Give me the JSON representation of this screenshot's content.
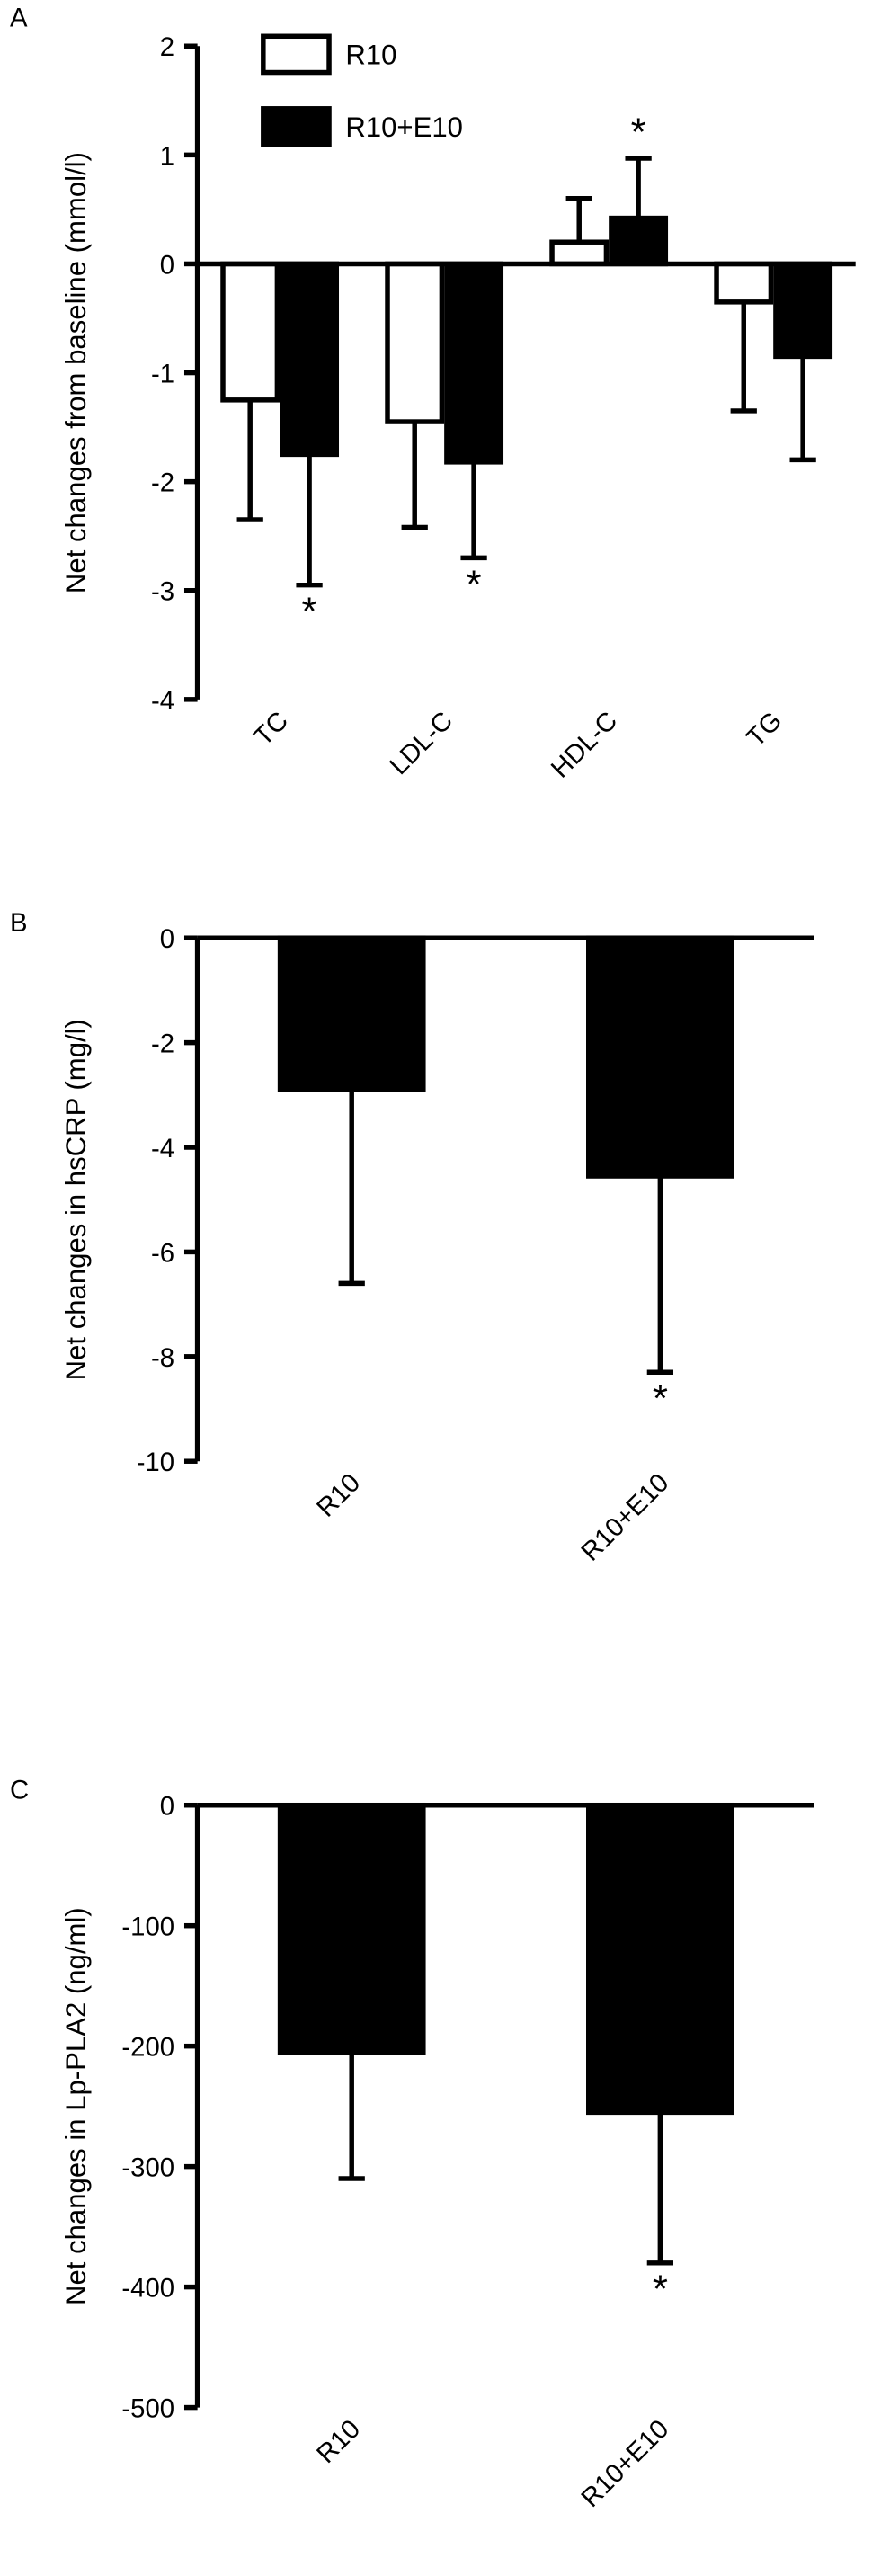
{
  "chart_data": [
    {
      "type": "bar",
      "panel_label": "A",
      "y_label": "Net changes from baseline (mmol/l)",
      "categories": [
        "TC",
        "LDL-C",
        "HDL-C",
        "TG"
      ],
      "series": [
        {
          "name": "R10",
          "color": "#ffffff",
          "values": [
            -1.25,
            -1.45,
            0.2,
            -0.35
          ],
          "errors": [
            1.1,
            0.97,
            0.4,
            1.0
          ],
          "annotations": [
            null,
            null,
            null,
            null
          ]
        },
        {
          "name": "R10+E10",
          "color": "#000000",
          "values": [
            -1.75,
            -1.82,
            0.42,
            -0.85
          ],
          "errors": [
            1.2,
            0.88,
            0.55,
            0.95
          ],
          "annotations": [
            "*",
            "*",
            "*",
            null
          ]
        }
      ],
      "ylim": [
        -4,
        2
      ],
      "yticks": [
        -4,
        -3,
        -2,
        -1,
        0,
        1,
        2
      ],
      "legend": "upper left"
    },
    {
      "type": "bar",
      "panel_label": "B",
      "y_label": "Net changes in hsCRP (mg/l)",
      "categories": [
        "R10",
        "R10+E10"
      ],
      "series": [
        {
          "color": "#000000",
          "values": [
            -2.9,
            -4.55
          ],
          "errors": [
            3.7,
            3.75
          ],
          "annotations": [
            null,
            "*"
          ]
        }
      ],
      "ylim": [
        -10,
        0
      ],
      "yticks": [
        -10,
        -8,
        -6,
        -4,
        -2,
        0
      ]
    },
    {
      "type": "bar",
      "panel_label": "C",
      "y_label": "Net changes in Lp-PLA2 (ng/ml)",
      "categories": [
        "R10",
        "R10+E10"
      ],
      "series": [
        {
          "color": "#000000",
          "values": [
            -205,
            -255
          ],
          "errors": [
            105,
            125
          ],
          "annotations": [
            null,
            "*"
          ]
        }
      ],
      "ylim": [
        -500,
        0
      ],
      "yticks": [
        -500,
        -400,
        -300,
        -200,
        -100,
        0
      ]
    }
  ]
}
